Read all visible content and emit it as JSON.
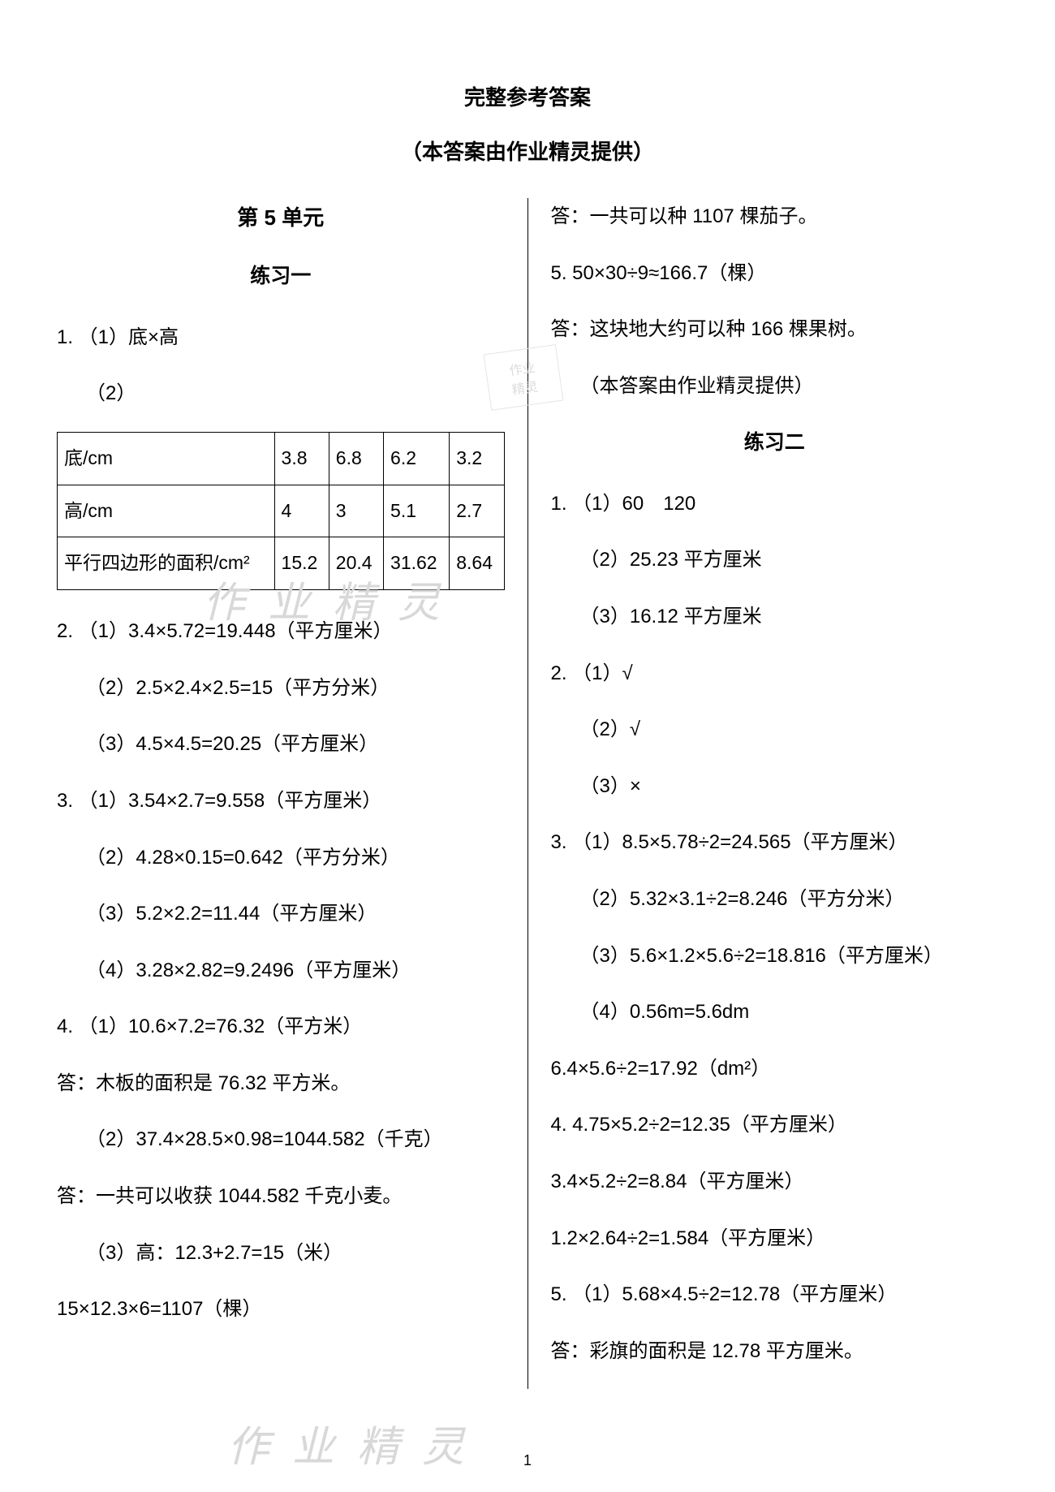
{
  "title": "完整参考答案",
  "subtitle": "（本答案由作业精灵提供）",
  "page_number": "1",
  "watermark_text": "作业精灵",
  "stamp_lines": [
    "作业",
    "精灵"
  ],
  "left": {
    "unit_heading": "第 5 单元",
    "section_heading": "练习一",
    "q1_1": "1. （1）底×高",
    "q1_2_prefix": "（2）",
    "table": {
      "row_labels": [
        "底/cm",
        "高/cm",
        "平行四边形的面积/cm²"
      ],
      "cols": [
        [
          "3.8",
          "4",
          "15.2"
        ],
        [
          "6.8",
          "3",
          "20.4"
        ],
        [
          "6.2",
          "5.1",
          "31.62"
        ],
        [
          "3.2",
          "2.7",
          "8.64"
        ]
      ]
    },
    "lines": [
      {
        "text": "2. （1）3.4×5.72=19.448（平方厘米）",
        "indent": false
      },
      {
        "text": "（2）2.5×2.4×2.5=15（平方分米）",
        "indent": true
      },
      {
        "text": "（3）4.5×4.5=20.25（平方厘米）",
        "indent": true
      },
      {
        "text": "3. （1）3.54×2.7=9.558（平方厘米）",
        "indent": false
      },
      {
        "text": "（2）4.28×0.15=0.642（平方分米）",
        "indent": true
      },
      {
        "text": "（3）5.2×2.2=11.44（平方厘米）",
        "indent": true
      },
      {
        "text": "（4）3.28×2.82=9.2496（平方厘米）",
        "indent": true
      },
      {
        "text": "4. （1）10.6×7.2=76.32（平方米）",
        "indent": false
      },
      {
        "text": "答：木板的面积是 76.32 平方米。",
        "indent": false
      },
      {
        "text": "（2）37.4×28.5×0.98=1044.582（千克）",
        "indent": true
      },
      {
        "text": "答：一共可以收获 1044.582 千克小麦。",
        "indent": false
      },
      {
        "text": "（3）高：12.3+2.7=15（米）",
        "indent": true
      },
      {
        "text": "15×12.3×6=1107（棵）",
        "indent": false
      }
    ]
  },
  "right": {
    "top_lines": [
      {
        "text": "答：一共可以种 1107 棵茄子。",
        "indent": false
      },
      {
        "text": "5. 50×30÷9≈166.7（棵）",
        "indent": false
      },
      {
        "text": "答：这块地大约可以种 166 棵果树。",
        "indent": false
      },
      {
        "text": "（本答案由作业精灵提供）",
        "indent": true
      }
    ],
    "section_heading": "练习二",
    "lines": [
      {
        "text": "1. （1）60　120",
        "indent": false
      },
      {
        "text": "（2）25.23 平方厘米",
        "indent": true
      },
      {
        "text": "（3）16.12 平方厘米",
        "indent": true
      },
      {
        "text": "2. （1）√",
        "indent": false
      },
      {
        "text": "（2）√",
        "indent": true
      },
      {
        "text": "（3）×",
        "indent": true
      },
      {
        "text": "3. （1）8.5×5.78÷2=24.565（平方厘米）",
        "indent": false
      },
      {
        "text": "（2）5.32×3.1÷2=8.246（平方分米）",
        "indent": true
      },
      {
        "text": "（3）5.6×1.2×5.6÷2=18.816（平方厘米）",
        "indent": true
      },
      {
        "text": "（4）0.56m=5.6dm",
        "indent": true
      },
      {
        "text": "6.4×5.6÷2=17.92（dm²）",
        "indent": false
      },
      {
        "text": "4. 4.75×5.2÷2=12.35（平方厘米）",
        "indent": false
      },
      {
        "text": "3.4×5.2÷2=8.84（平方厘米）",
        "indent": false
      },
      {
        "text": "1.2×2.64÷2=1.584（平方厘米）",
        "indent": false
      },
      {
        "text": "5. （1）5.68×4.5÷2=12.78（平方厘米）",
        "indent": false
      },
      {
        "text": "答：彩旗的面积是 12.78 平方厘米。",
        "indent": false
      }
    ]
  }
}
